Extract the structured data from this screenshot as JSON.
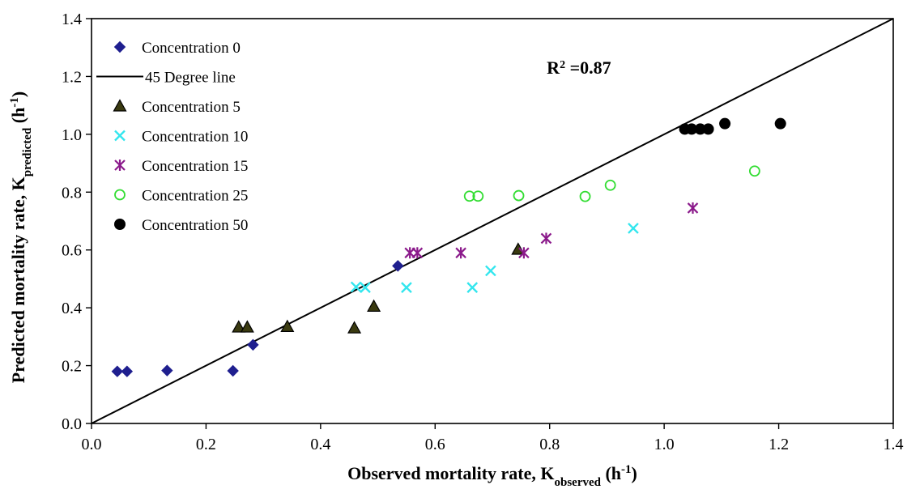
{
  "chart_data": {
    "type": "scatter",
    "xlabel": {
      "main": "Observed mortality rate, K",
      "sub": "observed",
      "unit_pre": " (h",
      "unit_sup": "-1",
      "unit_post": ")"
    },
    "ylabel": {
      "main": "Predicted mortality rate, K",
      "sub": "predicted",
      "unit_pre": " (h",
      "unit_sup": "-1",
      "unit_post": ")"
    },
    "xlim": [
      0,
      1.4
    ],
    "ylim": [
      0,
      1.4
    ],
    "xticks": [
      "0.0",
      "0.2",
      "0.4",
      "0.6",
      "0.8",
      "1.0",
      "1.2",
      "1.4"
    ],
    "yticks": [
      "0.0",
      "0.2",
      "0.4",
      "0.6",
      "0.8",
      "1.0",
      "1.2",
      "1.4"
    ],
    "grid": false,
    "legend_position": "top-left",
    "annotation": {
      "label": "R",
      "sup": "2",
      "rest": " =0.87",
      "x": 0.795,
      "y": 1.21
    },
    "reference_line": {
      "name": "45 Degree line",
      "x": [
        0,
        1.4
      ],
      "y": [
        0,
        1.4
      ],
      "color": "#000000"
    },
    "series": [
      {
        "name": "Concentration 0",
        "marker": "diamond",
        "color": "#1f1f8f",
        "points": [
          [
            0.045,
            0.18
          ],
          [
            0.062,
            0.18
          ],
          [
            0.132,
            0.183
          ],
          [
            0.247,
            0.182
          ],
          [
            0.282,
            0.272
          ],
          [
            0.535,
            0.545
          ]
        ]
      },
      {
        "name": "Concentration 5",
        "marker": "triangle",
        "color": "#3a3a10",
        "points": [
          [
            0.257,
            0.333
          ],
          [
            0.272,
            0.333
          ],
          [
            0.342,
            0.335
          ],
          [
            0.459,
            0.33
          ],
          [
            0.493,
            0.405
          ],
          [
            0.745,
            0.602
          ]
        ]
      },
      {
        "name": "Concentration 10",
        "marker": "x",
        "color": "#33e6ee",
        "points": [
          [
            0.462,
            0.472
          ],
          [
            0.478,
            0.47
          ],
          [
            0.55,
            0.47
          ],
          [
            0.665,
            0.47
          ],
          [
            0.697,
            0.528
          ],
          [
            0.946,
            0.675
          ]
        ]
      },
      {
        "name": "Concentration 15",
        "marker": "asterisk",
        "color": "#8b1a8b",
        "points": [
          [
            0.556,
            0.59
          ],
          [
            0.569,
            0.59
          ],
          [
            0.645,
            0.59
          ],
          [
            0.755,
            0.59
          ],
          [
            0.794,
            0.64
          ],
          [
            1.05,
            0.745
          ]
        ]
      },
      {
        "name": "Concentration 25",
        "marker": "circle-open",
        "color": "#33dd33",
        "points": [
          [
            0.66,
            0.786
          ],
          [
            0.675,
            0.786
          ],
          [
            0.746,
            0.788
          ],
          [
            0.862,
            0.785
          ],
          [
            0.906,
            0.824
          ],
          [
            1.158,
            0.873
          ]
        ]
      },
      {
        "name": "Concentration 50",
        "marker": "circle-filled",
        "color": "#000000",
        "points": [
          [
            1.036,
            1.018
          ],
          [
            1.048,
            1.018
          ],
          [
            1.063,
            1.018
          ],
          [
            1.077,
            1.018
          ],
          [
            1.106,
            1.037
          ],
          [
            1.203,
            1.037
          ]
        ]
      }
    ],
    "legend_order": [
      "Concentration 0",
      "45 Degree line",
      "Concentration 5",
      "Concentration 10",
      "Concentration 15",
      "Concentration 25",
      "Concentration 50"
    ]
  }
}
